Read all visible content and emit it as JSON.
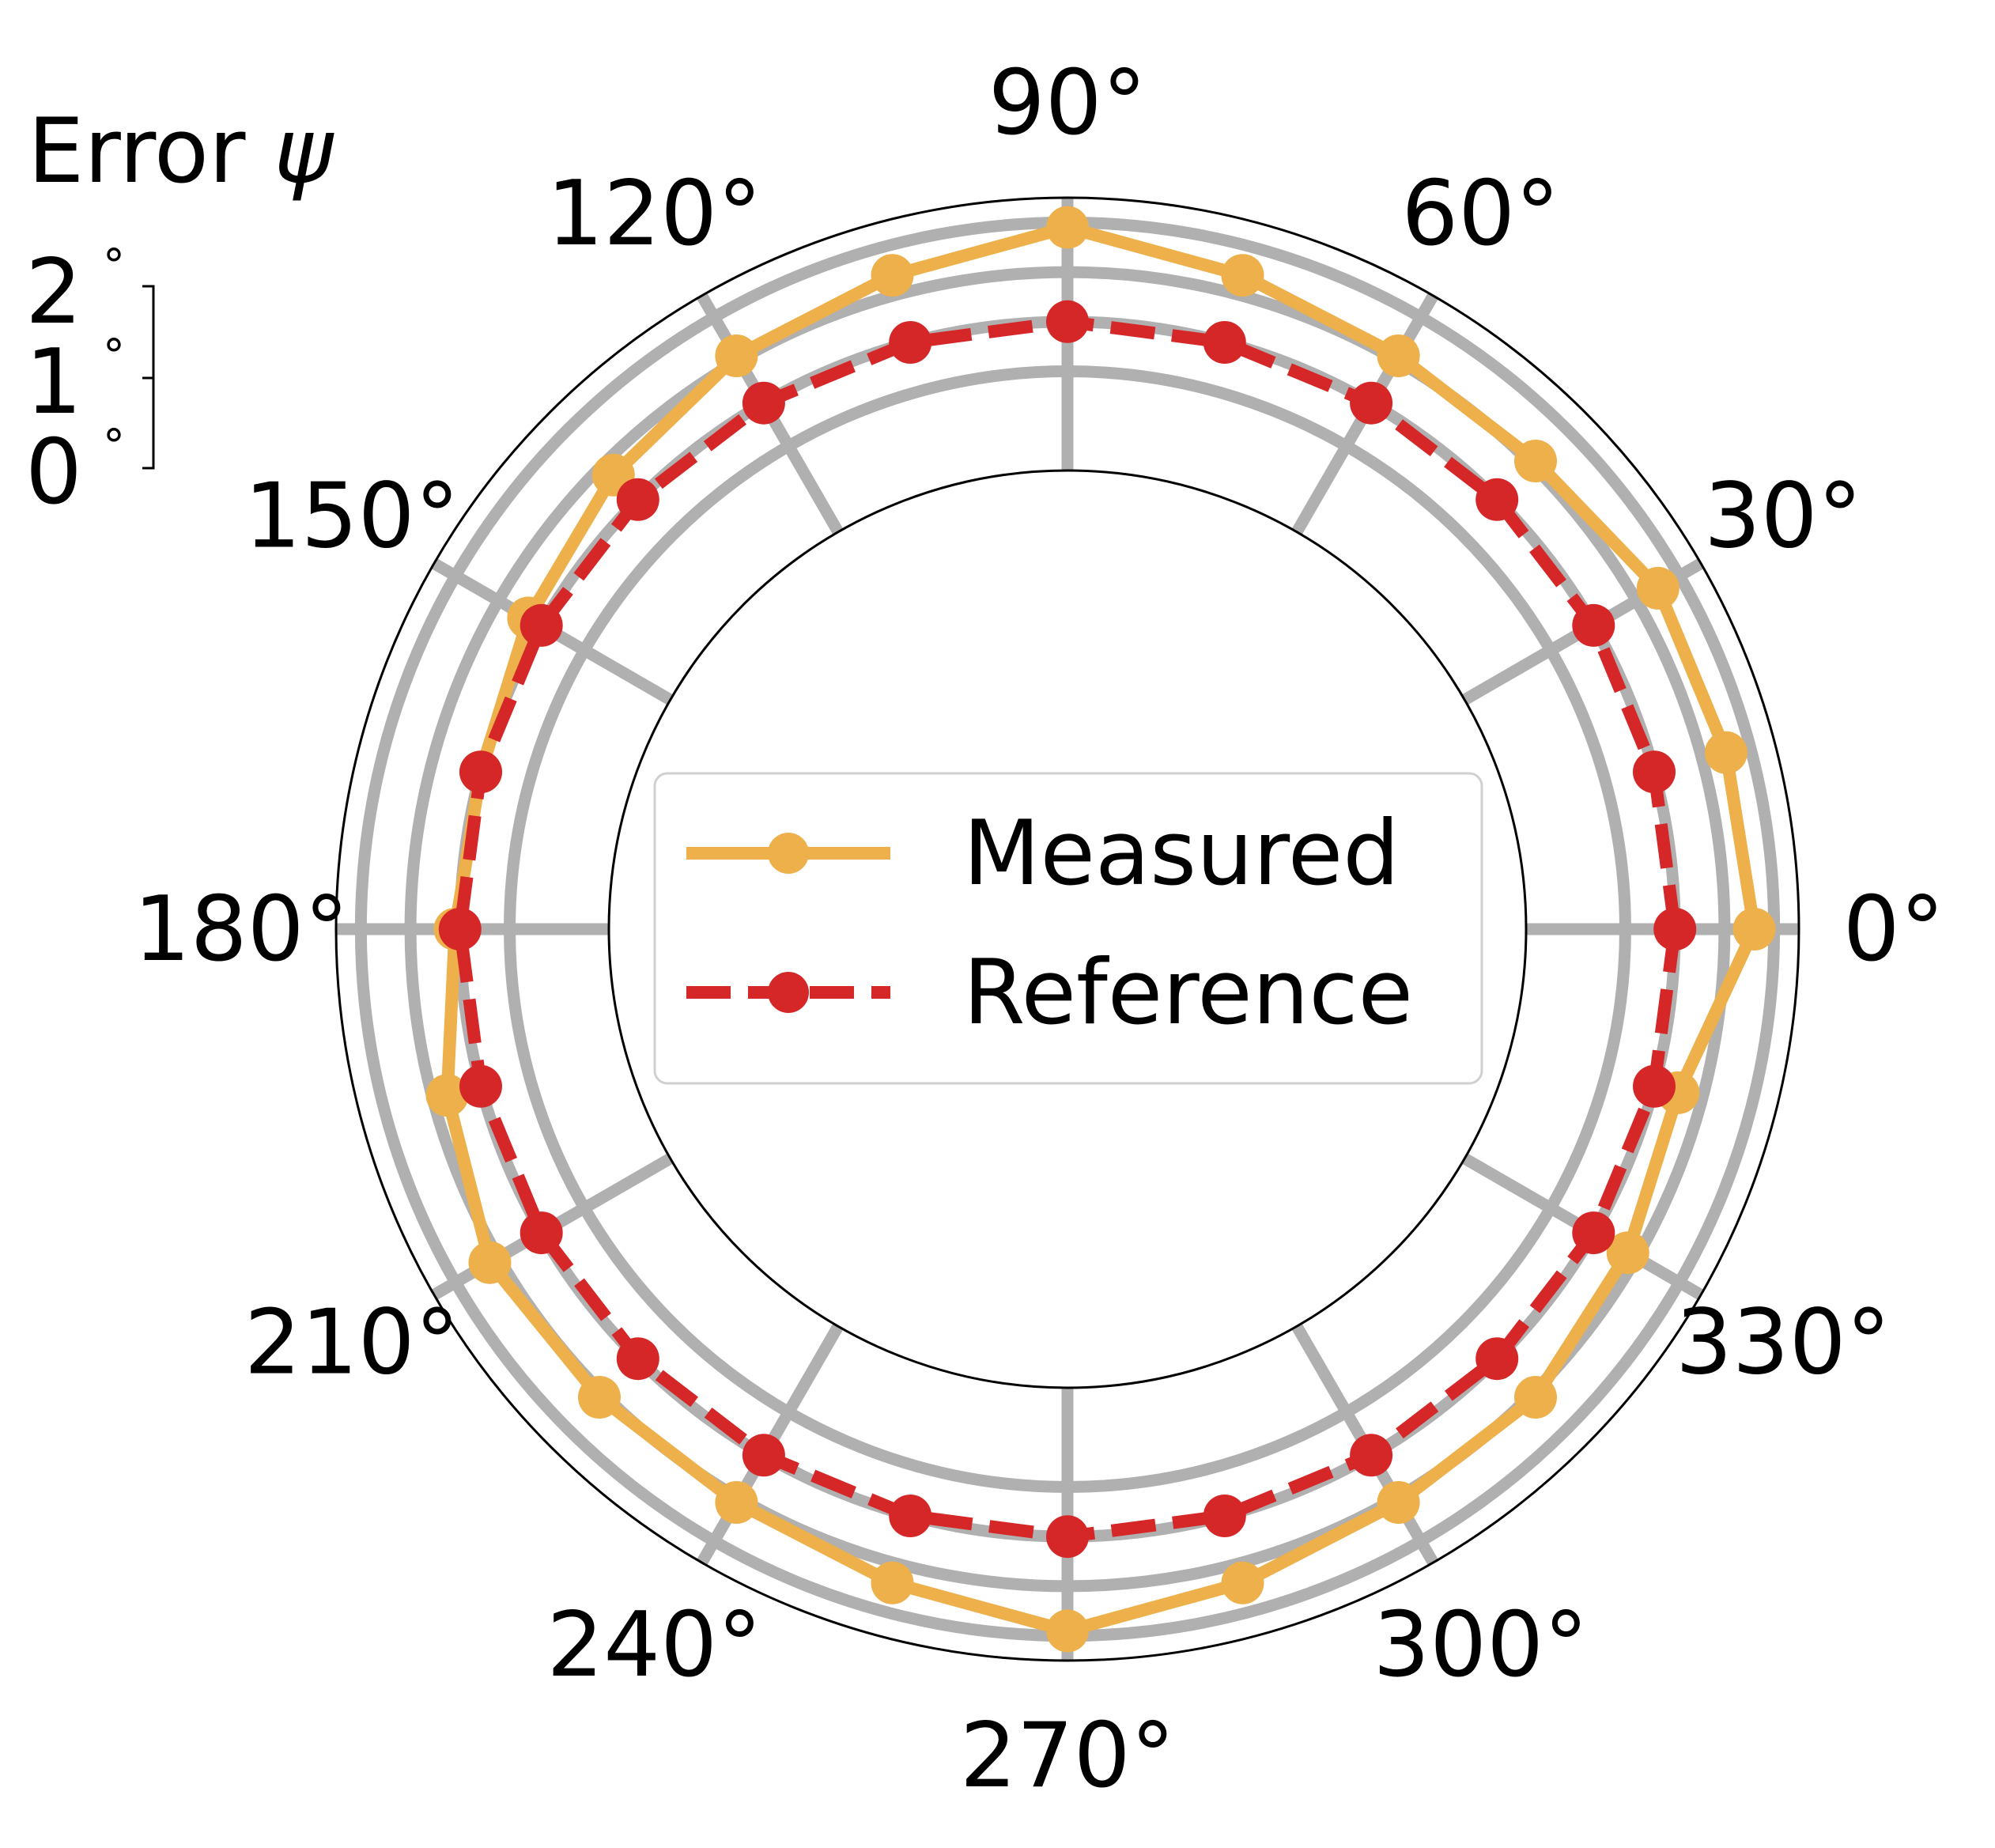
{
  "chart_data": {
    "type": "polar-line",
    "title": "Error",
    "title_symbol": "ψ",
    "theta_ticks": [
      "0°",
      "30°",
      "60°",
      "90°",
      "120°",
      "150°",
      "180°",
      "210°",
      "240°",
      "270°",
      "300°",
      "330°"
    ],
    "r_ticks": [
      "0",
      "1",
      "2"
    ],
    "r_tick_unit": "°",
    "r_range_deg": [
      -3,
      2.5
    ],
    "radial_gridlines_deg": [
      -1,
      0,
      1,
      2
    ],
    "grid": true,
    "legend": {
      "placement": "center"
    },
    "series": [
      {
        "name": "Measured",
        "color": "#EDB04A",
        "line_style": "solid",
        "marker": "circle",
        "theta_deg": [
          0,
          15,
          30,
          45,
          60,
          75,
          90,
          105,
          120,
          135,
          150,
          165,
          180,
          195,
          210,
          225,
          240,
          255,
          270,
          285,
          300,
          315,
          330,
          345
        ],
        "r_deg": [
          1.6,
          1.5,
          1.5,
          1.1,
          1.1,
          1.4,
          1.9,
          1.4,
          1.1,
          0.7,
          0.3,
          0.0,
          0.1,
          0.7,
          1.2,
          1.1,
          1.1,
          1.4,
          1.9,
          1.4,
          1.1,
          1.1,
          0.8,
          0.5
        ]
      },
      {
        "name": "Reference",
        "color": "#D62728",
        "line_style": "dashed",
        "marker": "circle",
        "theta_deg": [
          0,
          15,
          30,
          45,
          60,
          75,
          90,
          105,
          120,
          135,
          150,
          165,
          180,
          195,
          210,
          225,
          240,
          255,
          270,
          285,
          300,
          315,
          330,
          345
        ],
        "r_deg": [
          0.0,
          0.0,
          0.0,
          0.0,
          0.0,
          0.0,
          0.0,
          0.0,
          0.0,
          0.0,
          0.0,
          0.0,
          0.0,
          0.0,
          0.0,
          0.0,
          0.0,
          0.0,
          0.0,
          0.0,
          0.0,
          0.0,
          0.0,
          0.0
        ]
      }
    ]
  }
}
